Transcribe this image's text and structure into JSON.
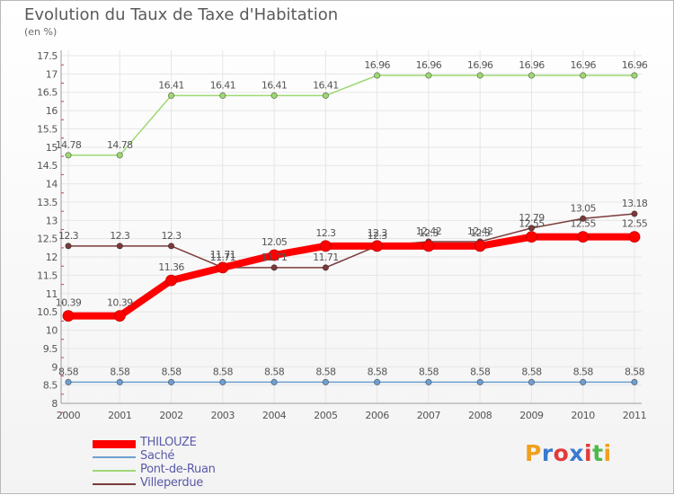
{
  "header": {
    "title": "Evolution du Taux de Taxe d'Habitation",
    "subtitle": "(en %)"
  },
  "chart_data": {
    "type": "line",
    "title": "Evolution du Taux de Taxe d'Habitation",
    "ylabel": "(en %)",
    "xlabel": "",
    "categories": [
      "2000",
      "2001",
      "2002",
      "2003",
      "2004",
      "2005",
      "2006",
      "2007",
      "2008",
      "2009",
      "2010",
      "2011"
    ],
    "ylim": [
      8,
      17.5
    ],
    "yticks": [
      8,
      8.5,
      9,
      9.5,
      10,
      10.5,
      11,
      11.5,
      12,
      12.5,
      13,
      13.5,
      14,
      14.5,
      15,
      15.5,
      16,
      16.5,
      17,
      17.5
    ],
    "grid": true,
    "legend_position": "bottom-left",
    "series": [
      {
        "name": "THILOUZE",
        "color": "#ff0000",
        "values": [
          10.39,
          10.39,
          11.36,
          11.71,
          12.05,
          12.3,
          12.3,
          12.3,
          12.3,
          12.55,
          12.55,
          12.55
        ],
        "labels": [
          "10.39",
          "10.39",
          "11.36",
          "11.71",
          "12.05",
          "12.3",
          "12.3",
          "12.3",
          "12.3",
          "12.55",
          "12.55",
          "12.55"
        ]
      },
      {
        "name": "Saché",
        "color": "#6f9fd0",
        "values": [
          8.58,
          8.58,
          8.58,
          8.58,
          8.58,
          8.58,
          8.58,
          8.58,
          8.58,
          8.58,
          8.58,
          8.58
        ],
        "labels": [
          "8.58",
          "8.58",
          "8.58",
          "8.58",
          "8.58",
          "8.58",
          "8.58",
          "8.58",
          "8.58",
          "8.58",
          "8.58",
          "8.58"
        ]
      },
      {
        "name": "Pont-de-Ruan",
        "color": "#9ed873",
        "values": [
          14.78,
          14.78,
          16.41,
          16.41,
          16.41,
          16.41,
          16.96,
          16.96,
          16.96,
          16.96,
          16.96,
          16.96
        ],
        "labels": [
          "14.78",
          "14.78",
          "16.41",
          "16.41",
          "16.41",
          "16.41",
          "16.96",
          "16.96",
          "16.96",
          "16.96",
          "16.96",
          "16.96"
        ]
      },
      {
        "name": "Villeperdue",
        "color": "#7b3a3a",
        "values": [
          12.3,
          12.3,
          12.3,
          11.71,
          11.71,
          11.71,
          12.3,
          12.42,
          12.42,
          12.79,
          13.05,
          13.18
        ],
        "labels": [
          "12.3",
          "12.3",
          "12.3",
          "11.71",
          "11.71",
          "11.71",
          "12.3",
          "12.42",
          "12.42",
          "12.79",
          "13.05",
          "13.18"
        ]
      }
    ]
  },
  "legend": {
    "items": [
      {
        "label": "THILOUZE",
        "color": "#ff0000"
      },
      {
        "label": "Saché",
        "color": "#6f9fd0"
      },
      {
        "label": "Pont-de-Ruan",
        "color": "#9ed873"
      },
      {
        "label": "Villeperdue",
        "color": "#7b3a3a"
      }
    ]
  },
  "logo": {
    "letters": [
      "P",
      "r",
      "o",
      "x",
      "i",
      "t",
      "i"
    ],
    "colors": [
      "#f0a020",
      "#3a7ad0",
      "#e23a3a",
      "#3a7ad0",
      "#e23a3a",
      "#4fb84f",
      "#f0a020"
    ]
  }
}
